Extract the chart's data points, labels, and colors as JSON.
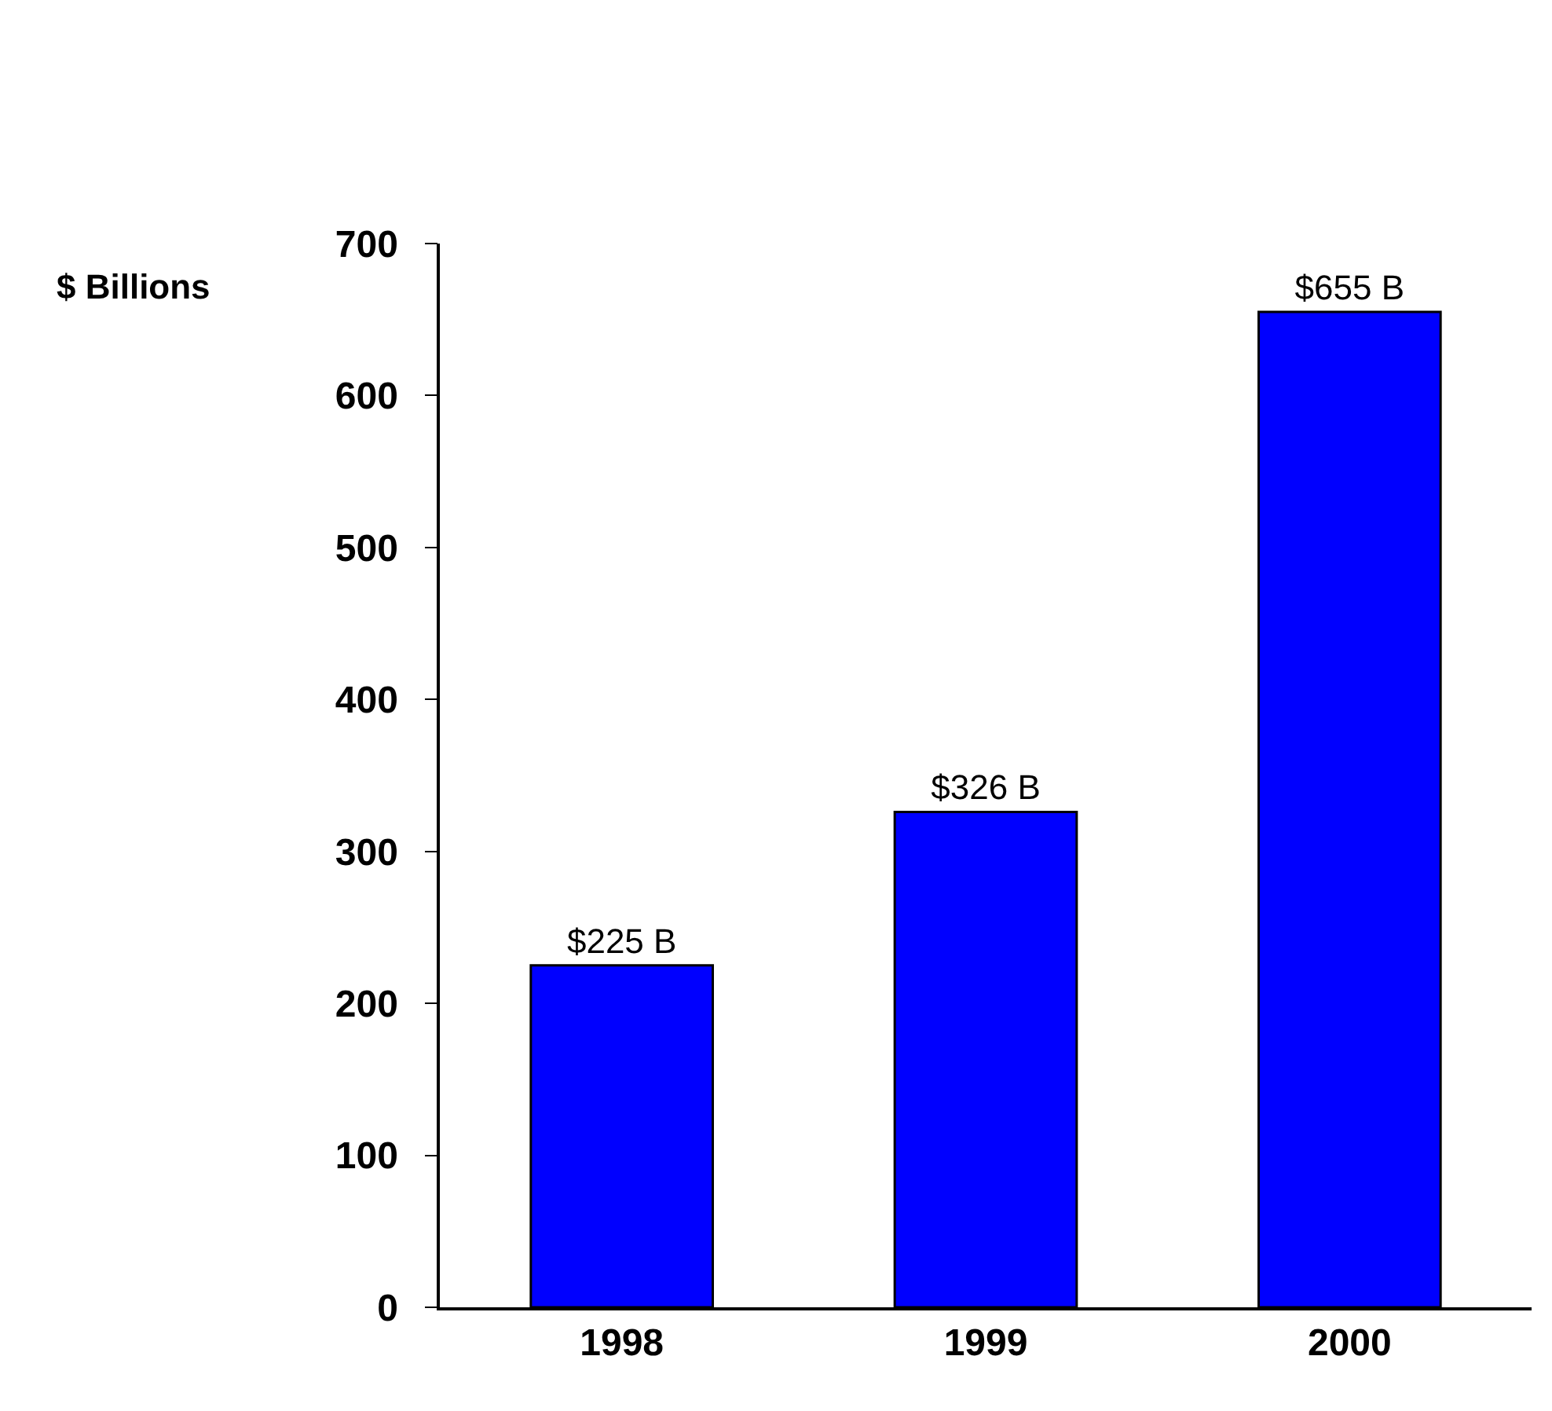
{
  "chart_data": {
    "type": "bar",
    "ylabel": "$ Billions",
    "categories": [
      "1998",
      "1999",
      "2000"
    ],
    "values": [
      225,
      326,
      655
    ],
    "value_labels": [
      "$225 B",
      "$326 B",
      "$655 B"
    ],
    "color": "#0000ff",
    "ylim": [
      0,
      700
    ],
    "yticks": [
      0,
      100,
      200,
      300,
      400,
      500,
      600,
      700
    ],
    "legend": false
  }
}
